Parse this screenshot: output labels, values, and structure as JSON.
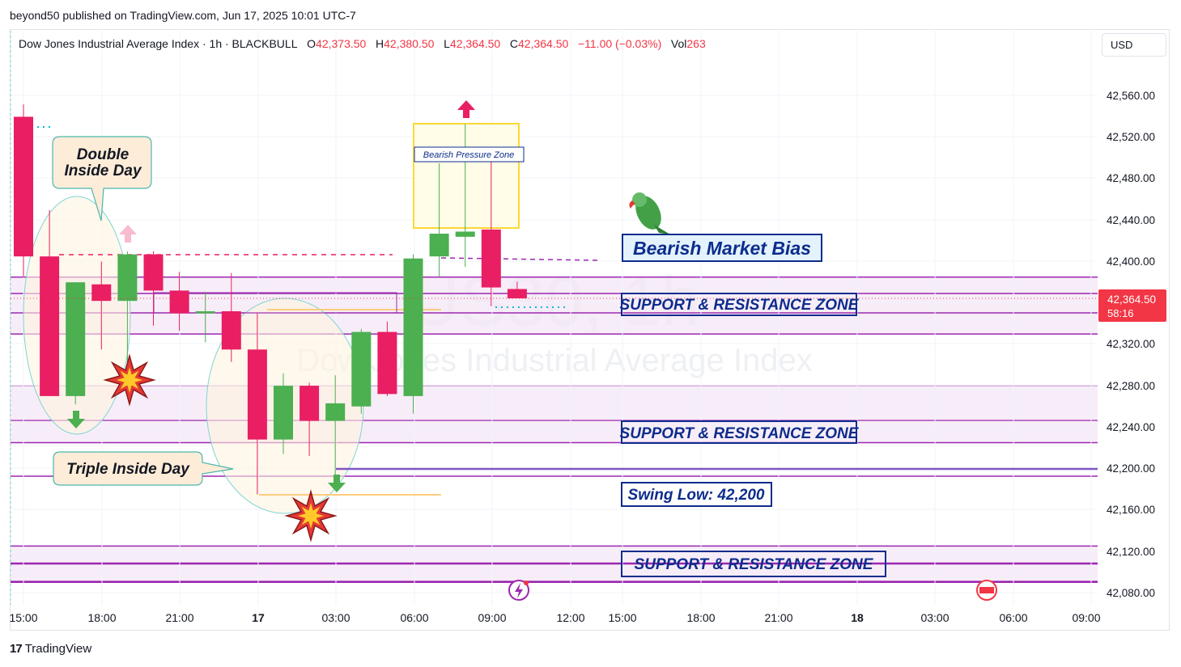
{
  "header": {
    "published": "beyond50 published on TradingView.com, Jun 17, 2025 10:01 UTC-7",
    "currency": "USD"
  },
  "legend": {
    "symbol": "Dow Jones Industrial Average Index · 1h · BLACKBULL",
    "o_label": "O",
    "o": "42,373.50",
    "h_label": "H",
    "h": "42,380.50",
    "l_label": "L",
    "l": "42,364.50",
    "c_label": "C",
    "c": "42,364.50",
    "change": "−11.00 (−0.03%)",
    "vol_label": "Vol",
    "vol": "263"
  },
  "watermark": {
    "symbol": "US30, 1h",
    "name": "Dow Jones Industrial Average Index"
  },
  "price_axis": {
    "ticks": [
      "42,560.00",
      "42,520.00",
      "42,480.00",
      "42,440.00",
      "42,400.00",
      "42,320.00",
      "42,280.00",
      "42,240.00",
      "42,200.00",
      "42,160.00",
      "42,120.00",
      "42,080.00"
    ],
    "last_price": "42,364.50",
    "countdown": "58:16"
  },
  "time_axis": {
    "labels": [
      "15:00",
      "18:00",
      "21:00",
      "17",
      "03:00",
      "06:00",
      "09:00",
      "12:00",
      "15:00",
      "18:00",
      "21:00",
      "18",
      "03:00",
      "06:00",
      "09:00"
    ],
    "bold": [
      "17",
      "18"
    ]
  },
  "annotations": {
    "double_inside_day": [
      "Double",
      "Inside Day"
    ],
    "triple_inside_day": "Triple Inside Day",
    "bearish_pressure_zone": "Bearish Pressure Zone",
    "bearish_market_bias": "Bearish Market Bias",
    "sr_zone_1": "SUPPORT & RESISTANCE ZONE",
    "sr_zone_2": "SUPPORT & RESISTANCE ZONE",
    "sr_zone_3": "SUPPORT & RESISTANCE ZONE",
    "swing_low": "Swing Low: 42,200"
  },
  "colors": {
    "up": "#4caf50",
    "down": "#e91e63",
    "zone_line": "#9c27b0",
    "zone_fill": "#f3e5f5",
    "label_text": "#0d2c8c",
    "bias_fill": "#e3f2fd",
    "swing_line": "#7e57c2"
  },
  "footer": {
    "brand": "TradingView"
  },
  "chart_data": {
    "type": "candlestick",
    "timeframe": "1h",
    "y_range": [
      42066,
      42590
    ],
    "candles": [
      {
        "time": "15:00",
        "o": 42540,
        "h": 42552,
        "l": 42385,
        "c": 42405
      },
      {
        "time": "16:00",
        "o": 42405,
        "h": 42450,
        "l": 42270,
        "c": 42270
      },
      {
        "time": "17:00",
        "o": 42270,
        "h": 42380,
        "l": 42262,
        "c": 42380
      },
      {
        "time": "18:00",
        "o": 42378,
        "h": 42400,
        "l": 42315,
        "c": 42362
      },
      {
        "time": "19:00",
        "o": 42362,
        "h": 42410,
        "l": 42290,
        "c": 42407
      },
      {
        "time": "20:00",
        "o": 42407,
        "h": 42410,
        "l": 42338,
        "c": 42372
      },
      {
        "time": "21:00",
        "o": 42372,
        "h": 42390,
        "l": 42333,
        "c": 42350
      },
      {
        "time": "22:00",
        "o": 42350,
        "h": 42371,
        "l": 42322,
        "c": 42352
      },
      {
        "time": "23:00",
        "o": 42352,
        "h": 42389,
        "l": 42303,
        "c": 42315
      },
      {
        "time": "00:00",
        "o": 42315,
        "h": 42350,
        "l": 42175,
        "c": 42228
      },
      {
        "time": "01:00",
        "o": 42228,
        "h": 42292,
        "l": 42214,
        "c": 42280
      },
      {
        "time": "02:00",
        "o": 42280,
        "h": 42283,
        "l": 42212,
        "c": 42246
      },
      {
        "time": "03:00",
        "o": 42246,
        "h": 42290,
        "l": 42190,
        "c": 42263
      },
      {
        "time": "04:00",
        "o": 42260,
        "h": 42335,
        "l": 42253,
        "c": 42332
      },
      {
        "time": "05:00",
        "o": 42332,
        "h": 42342,
        "l": 42270,
        "c": 42272
      },
      {
        "time": "06:00",
        "o": 42270,
        "h": 42407,
        "l": 42253,
        "c": 42403
      },
      {
        "time": "07:00",
        "o": 42405,
        "h": 42495,
        "l": 42385,
        "c": 42427
      },
      {
        "time": "08:00",
        "o": 42424,
        "h": 42533,
        "l": 42395,
        "c": 42429
      },
      {
        "time": "09:00",
        "o": 42431,
        "h": 42498,
        "l": 42357,
        "c": 42375
      },
      {
        "time": "10:00",
        "o": 42373.5,
        "h": 42380.5,
        "l": 42364.5,
        "c": 42364.5
      }
    ],
    "support_resistance_zones": [
      [
        42330,
        42385
      ],
      [
        42225,
        42280
      ],
      [
        42090,
        42125
      ]
    ],
    "swing_low": 42200,
    "last_price": 42364.5
  }
}
